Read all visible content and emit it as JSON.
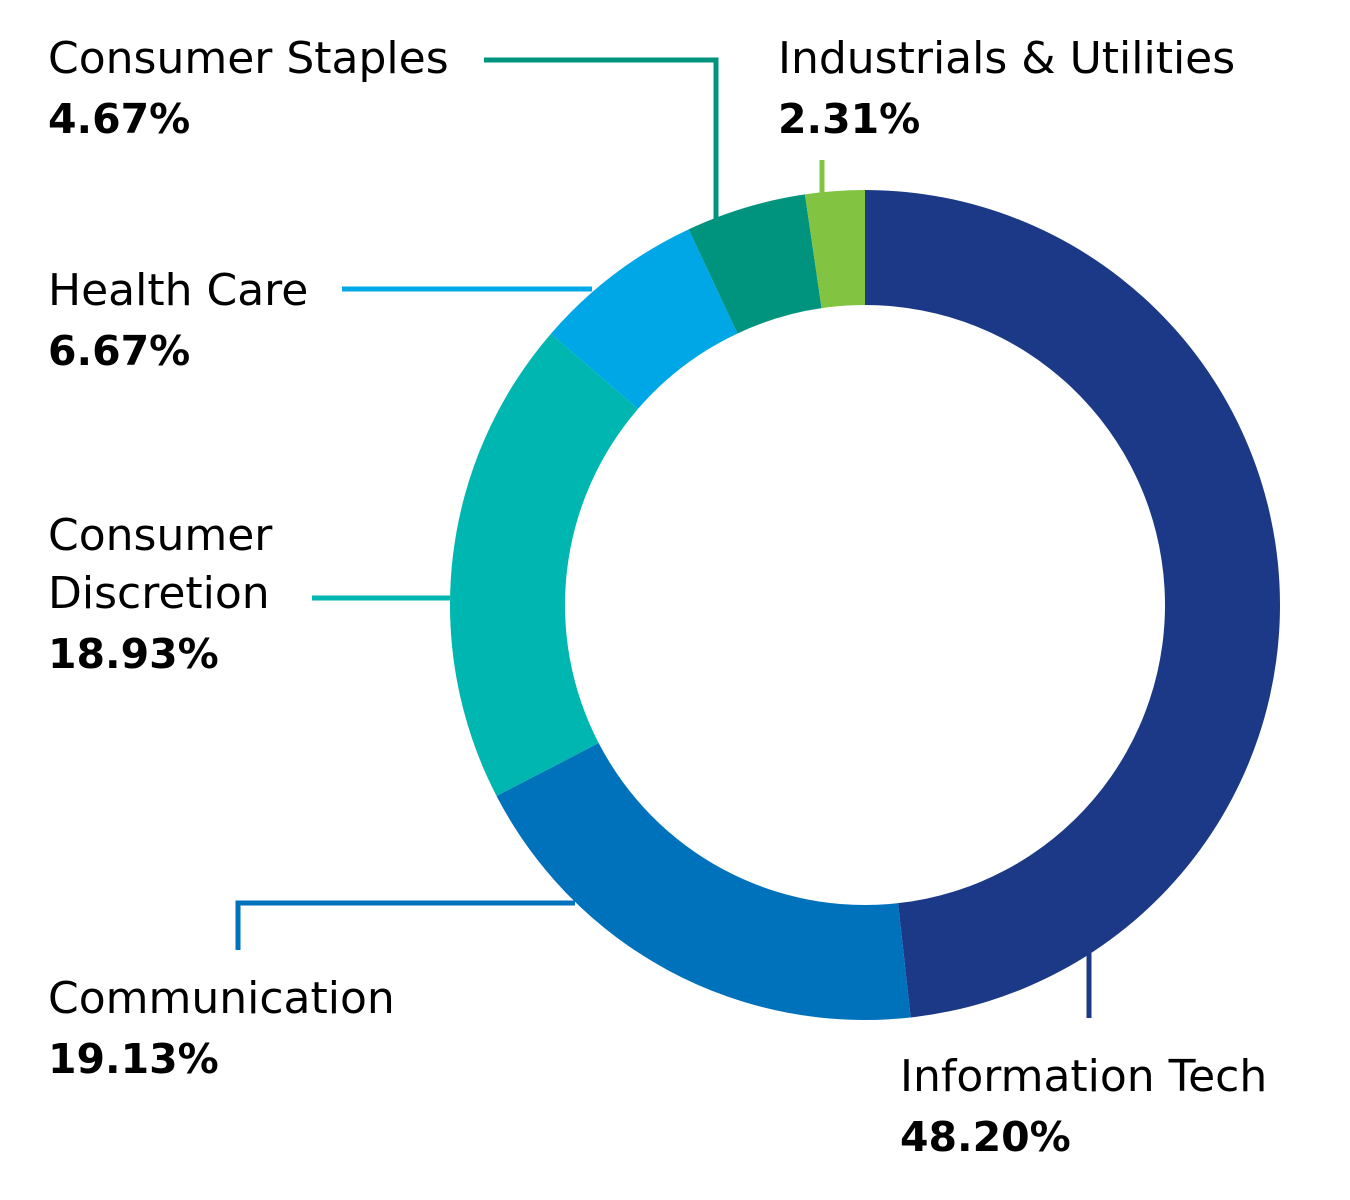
{
  "chart_data": {
    "type": "pie",
    "donut": true,
    "title": "",
    "legend": "none",
    "slices": [
      {
        "label": "Information Tech",
        "value": 48.2,
        "value_label": "48.20%",
        "color": "#1c3987"
      },
      {
        "label": "Communication",
        "value": 19.13,
        "value_label": "19.13%",
        "color": "#0071bb"
      },
      {
        "label": "Consumer Discretion",
        "label_lines": [
          "Consumer",
          "Discretion"
        ],
        "value": 18.93,
        "value_label": "18.93%",
        "color": "#00b6b0"
      },
      {
        "label": "Health Care",
        "value": 6.67,
        "value_label": "6.67%",
        "color": "#00a7e6"
      },
      {
        "label": "Consumer Staples",
        "value": 4.67,
        "value_label": "4.67%",
        "color": "#00937d"
      },
      {
        "label": "Industrials & Utilities",
        "value": 2.31,
        "value_label": "2.31%",
        "color": "#82c341"
      }
    ]
  }
}
